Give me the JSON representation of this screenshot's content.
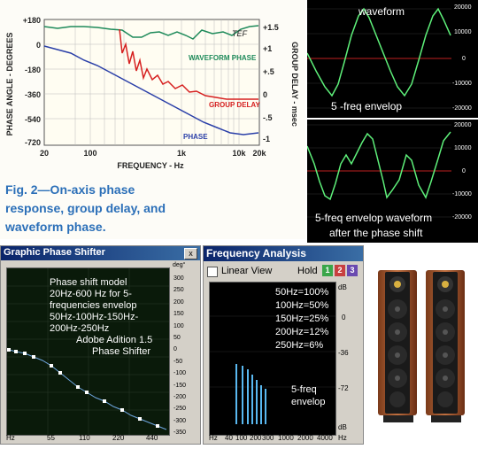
{
  "figure": {
    "y_axis_left_label": "PHASE ANGLE - DEGREES",
    "y_axis_right_label": "GROUP DELAY - msec",
    "x_axis_label": "FREQUENCY - Hz",
    "left_ticks": [
      "+180",
      "0",
      "-180",
      "-360",
      "-540",
      "-720"
    ],
    "right_ticks": [
      "+1.5",
      "+1",
      "+.5",
      "0",
      "-.5",
      "-1"
    ],
    "x_ticks": [
      "20",
      "100",
      "1k",
      "10k",
      "20k"
    ],
    "tef_label": "TEF",
    "waveform_phase_label": "WAVEFORM PHASE",
    "group_delay_label": "GROUP DELAY",
    "phase_label": "PHASE",
    "caption_line1": "Fig. 2—On-axis phase",
    "caption_line2": "response, group delay, and",
    "caption_line3": "waveform phase.",
    "colors": {
      "waveform_phase": "#1e8a5a",
      "group_delay": "#d62020",
      "phase": "#2a3fa8",
      "caption": "#2b6fb8"
    }
  },
  "scope_top": {
    "title": "waveform",
    "subtitle": "5 -freq envelop",
    "ticks": [
      "20000",
      "10000",
      "0",
      "-10000",
      "-20000"
    ]
  },
  "scope_bottom": {
    "label_line1": "5-freq envelop waveform",
    "label_line2": "after the phase shift",
    "ticks": [
      "20000",
      "10000",
      "0",
      "-10000",
      "-20000"
    ]
  },
  "phase_shifter": {
    "title": "Graphic Phase Shifter",
    "close": "x",
    "deg_unit": "deg°",
    "y_ticks": [
      "300",
      "250",
      "200",
      "150",
      "100",
      "50",
      "0",
      "-50",
      "-100",
      "-150",
      "-200",
      "-250",
      "-300",
      "-350"
    ],
    "x_ticks": [
      "Hz",
      "55",
      "110",
      "220",
      "440"
    ],
    "note_lines": [
      "Phase shift model",
      "20Hz-600 Hz for 5-",
      "frequencies envelop",
      "50Hz-100Hz-150Hz-",
      "200Hz-250Hz",
      "Adobe Adition 1.5",
      "Phase Shifter"
    ]
  },
  "freq_analysis": {
    "title": "Frequency Analysis",
    "linear_view": "Linear View",
    "hold": "Hold",
    "hold_buttons": [
      "1",
      "2",
      "3"
    ],
    "db_ticks": [
      "dB",
      "0",
      "-36",
      "-72",
      "dB"
    ],
    "x_ticks": [
      "Hz",
      "40",
      "100",
      "200",
      "300",
      "1000",
      "2000",
      "4000",
      "Hz"
    ],
    "levels": [
      "50Hz=100%",
      "100Hz=50%",
      "150Hz=25%",
      "200Hz=12%",
      "250Hz=6%"
    ],
    "envelop_line1": "5-freq",
    "envelop_line2": "envelop"
  }
}
